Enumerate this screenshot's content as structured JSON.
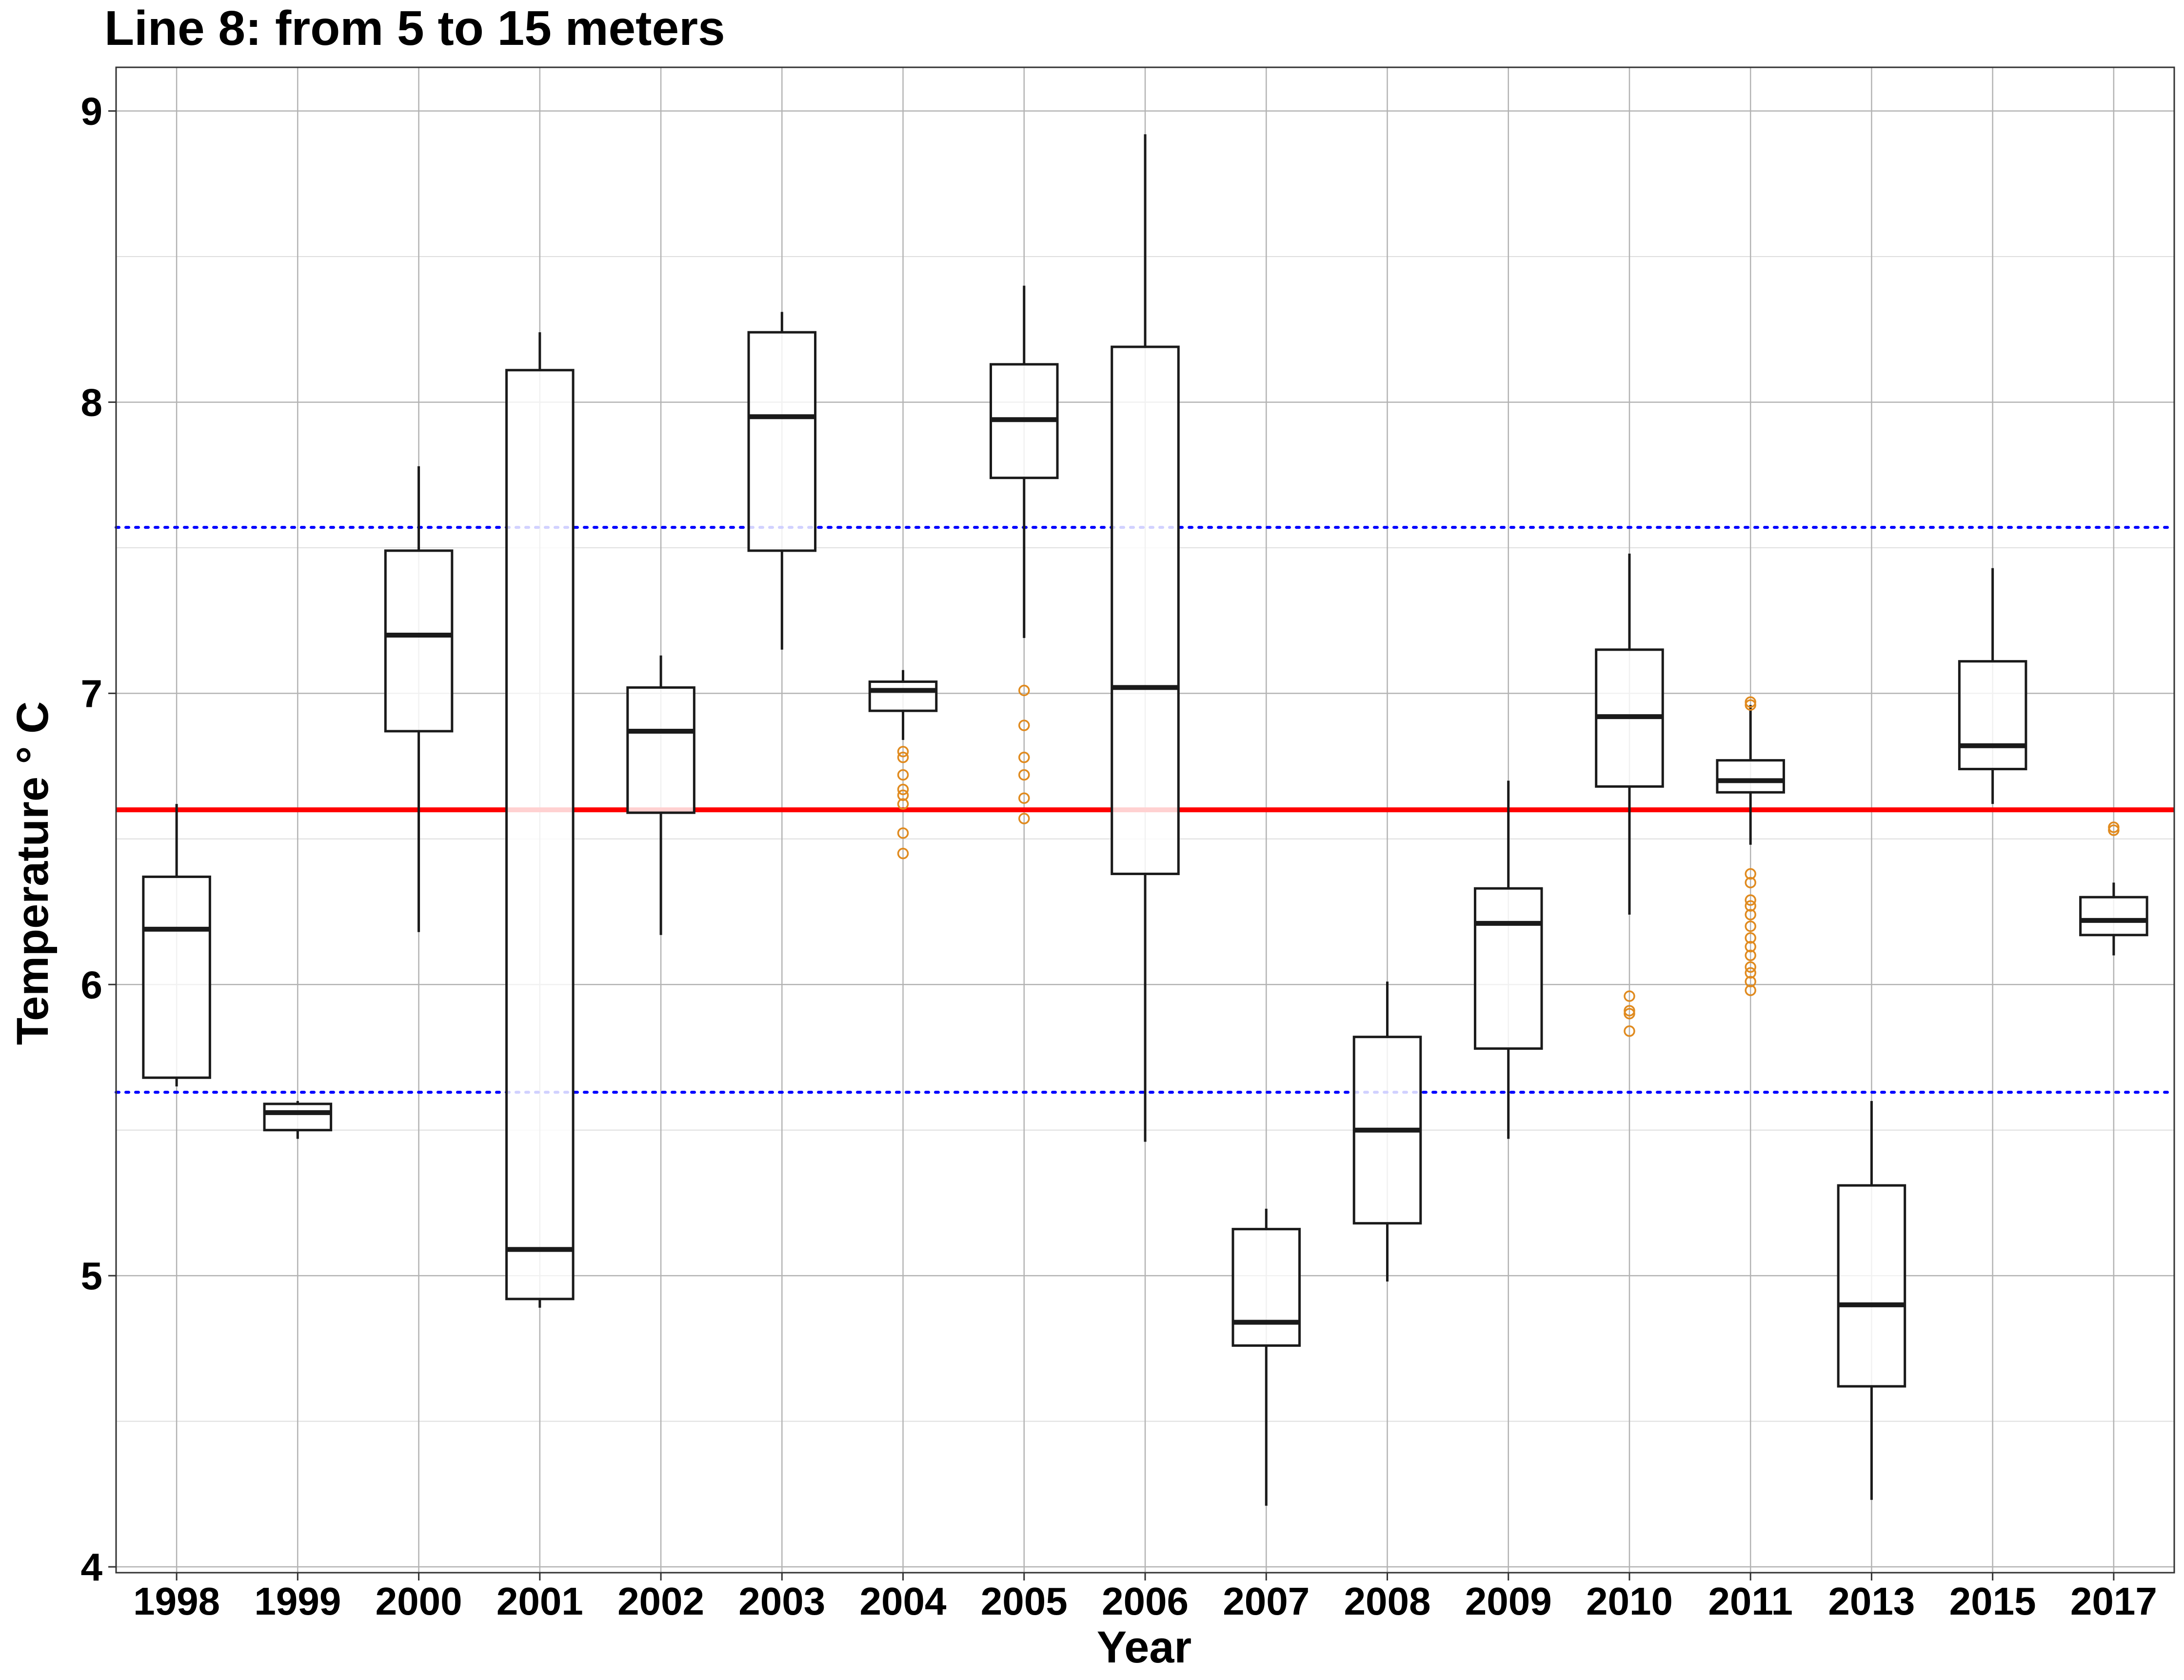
{
  "chart_data": {
    "type": "boxplot",
    "title": "Line 8: from 5 to 15 meters",
    "xlabel": "Year",
    "ylabel": "Temperature  ° C",
    "ylim": [
      3.98,
      9.15
    ],
    "yticks": [
      4,
      5,
      6,
      7,
      8,
      9
    ],
    "grid": true,
    "categories": [
      "1998",
      "1999",
      "2000",
      "2001",
      "2002",
      "2003",
      "2004",
      "2005",
      "2006",
      "2007",
      "2008",
      "2009",
      "2010",
      "2011",
      "2013",
      "2015",
      "2017"
    ],
    "boxes": [
      {
        "year": "1998",
        "whisker_low": 5.65,
        "q1": 5.68,
        "median": 6.19,
        "q3": 6.37,
        "whisker_high": 6.62,
        "outliers": []
      },
      {
        "year": "1999",
        "whisker_low": 5.47,
        "q1": 5.5,
        "median": 5.56,
        "q3": 5.59,
        "whisker_high": 5.6,
        "outliers": []
      },
      {
        "year": "2000",
        "whisker_low": 6.18,
        "q1": 6.87,
        "median": 7.2,
        "q3": 7.49,
        "whisker_high": 7.78,
        "outliers": []
      },
      {
        "year": "2001",
        "whisker_low": 4.89,
        "q1": 4.92,
        "median": 5.09,
        "q3": 8.11,
        "whisker_high": 8.24,
        "outliers": []
      },
      {
        "year": "2002",
        "whisker_low": 6.17,
        "q1": 6.59,
        "median": 6.87,
        "q3": 7.02,
        "whisker_high": 7.13,
        "outliers": []
      },
      {
        "year": "2003",
        "whisker_low": 7.15,
        "q1": 7.49,
        "median": 7.95,
        "q3": 8.24,
        "whisker_high": 8.31,
        "outliers": []
      },
      {
        "year": "2004",
        "whisker_low": 6.84,
        "q1": 6.94,
        "median": 7.01,
        "q3": 7.04,
        "whisker_high": 7.08,
        "outliers": [
          6.8,
          6.78,
          6.72,
          6.67,
          6.65,
          6.62,
          6.52,
          6.45
        ]
      },
      {
        "year": "2005",
        "whisker_low": 7.19,
        "q1": 7.74,
        "median": 7.94,
        "q3": 8.13,
        "whisker_high": 8.4,
        "outliers": [
          7.01,
          6.89,
          6.78,
          6.72,
          6.64,
          6.57
        ]
      },
      {
        "year": "2006",
        "whisker_low": 5.46,
        "q1": 6.38,
        "median": 7.02,
        "q3": 8.19,
        "whisker_high": 8.92,
        "outliers": []
      },
      {
        "year": "2007",
        "whisker_low": 4.21,
        "q1": 4.76,
        "median": 4.84,
        "q3": 5.16,
        "whisker_high": 5.23,
        "outliers": []
      },
      {
        "year": "2008",
        "whisker_low": 4.98,
        "q1": 5.18,
        "median": 5.5,
        "q3": 5.82,
        "whisker_high": 6.01,
        "outliers": []
      },
      {
        "year": "2009",
        "whisker_low": 5.47,
        "q1": 5.78,
        "median": 6.21,
        "q3": 6.33,
        "whisker_high": 6.7,
        "outliers": []
      },
      {
        "year": "2010",
        "whisker_low": 6.24,
        "q1": 6.68,
        "median": 6.92,
        "q3": 7.15,
        "whisker_high": 7.48,
        "outliers": [
          5.96,
          5.91,
          5.9,
          5.84
        ]
      },
      {
        "year": "2011",
        "whisker_low": 6.48,
        "q1": 6.66,
        "median": 6.7,
        "q3": 6.77,
        "whisker_high": 6.96,
        "outliers": [
          6.97,
          6.96,
          6.38,
          6.35,
          6.29,
          6.27,
          6.24,
          6.2,
          6.16,
          6.13,
          6.1,
          6.06,
          6.04,
          6.01,
          5.98
        ]
      },
      {
        "year": "2013",
        "whisker_low": 4.23,
        "q1": 4.62,
        "median": 4.9,
        "q3": 5.31,
        "whisker_high": 5.6,
        "outliers": []
      },
      {
        "year": "2015",
        "whisker_low": 6.62,
        "q1": 6.74,
        "median": 6.82,
        "q3": 7.11,
        "whisker_high": 7.43,
        "outliers": []
      },
      {
        "year": "2017",
        "whisker_low": 6.1,
        "q1": 6.17,
        "median": 6.22,
        "q3": 6.3,
        "whisker_high": 6.35,
        "outliers": [
          6.54,
          6.53
        ]
      }
    ],
    "reference_lines": [
      {
        "y": 6.6,
        "style": "solid",
        "color": "#ff0000"
      },
      {
        "y": 7.57,
        "style": "dotted",
        "color": "#0000ff"
      },
      {
        "y": 5.63,
        "style": "dotted",
        "color": "#0000ff"
      }
    ],
    "colors": {
      "box": "#1a1a1a",
      "outlier": "#e08a1e",
      "grid_major": "#b3b3b3",
      "grid_minor": "#dedede"
    }
  }
}
